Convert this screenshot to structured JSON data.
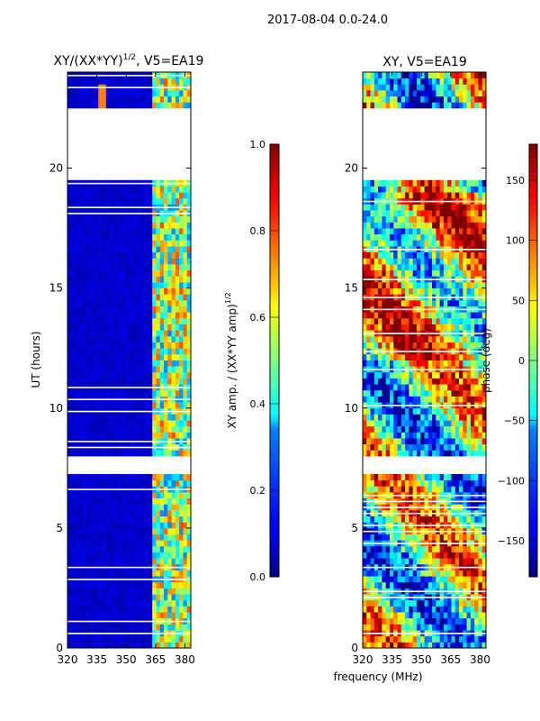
{
  "figure": {
    "suptitle": "2017-08-04 0.0-24.0",
    "xlabel": "frequency (MHz)"
  },
  "chart_data": [
    {
      "type": "heatmap",
      "title": "XY/(XX*YY)",
      "title_sup": "1/2",
      "title_suffix": ", V5=EA19",
      "xlabel": "",
      "ylabel": "UT (hours)",
      "xlim": [
        320,
        383
      ],
      "ylim": [
        0,
        24
      ],
      "xticks": [
        320,
        335,
        350,
        365,
        380
      ],
      "yticks": [
        0,
        5,
        10,
        15,
        20
      ],
      "colormap": "jet",
      "colorbar": {
        "label": "XY amp. / (XX*YY amp)",
        "label_sup": "1/2",
        "range": [
          0.0,
          1.0
        ],
        "ticks": [
          "0.0",
          "0.2",
          "0.4",
          "0.6",
          "0.8",
          "1.0"
        ],
        "tick_values": [
          0.0,
          0.2,
          0.4,
          0.6,
          0.8,
          1.0
        ]
      },
      "data_gaps_hours": [
        [
          7.2,
          7.9
        ],
        [
          19.5,
          22.4
        ]
      ],
      "notes": "Amplitude mostly low (~0.05) below 363 MHz; bright RFI columns near 364-382 MHz; strong spike near 338 MHz at ~23 h."
    },
    {
      "type": "heatmap",
      "title": "XY, V5=EA19",
      "xlabel": "",
      "ylabel": "",
      "xlim": [
        320,
        383
      ],
      "ylim": [
        0,
        24
      ],
      "xticks": [
        320,
        335,
        350,
        365,
        380
      ],
      "yticks": [
        0,
        5,
        10,
        15,
        20
      ],
      "colormap": "jet",
      "colorbar": {
        "label": "phase (deg)",
        "range": [
          -180,
          180
        ],
        "ticks": [
          "−150",
          "−100",
          "−50",
          "0",
          "50",
          "100",
          "150"
        ],
        "tick_values": [
          -150,
          -100,
          -50,
          0,
          50,
          100,
          150
        ]
      },
      "data_gaps_hours": [
        [
          7.2,
          7.9
        ],
        [
          19.5,
          22.4
        ]
      ],
      "notes": "Phase varies widely across the band; band-like structure with many flagged rows."
    }
  ]
}
